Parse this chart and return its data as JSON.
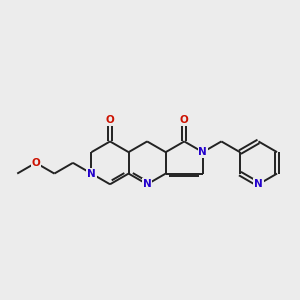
{
  "bg_color": "#ececec",
  "bond_color": "#222222",
  "N_color": "#2200cc",
  "O_color": "#cc1100",
  "line_width": 1.4,
  "font_size": 7.5,
  "figsize": [
    3.0,
    3.0
  ],
  "dpi": 100,
  "xlim": [
    0.0,
    10.5
  ],
  "ylim": [
    3.2,
    8.0
  ]
}
